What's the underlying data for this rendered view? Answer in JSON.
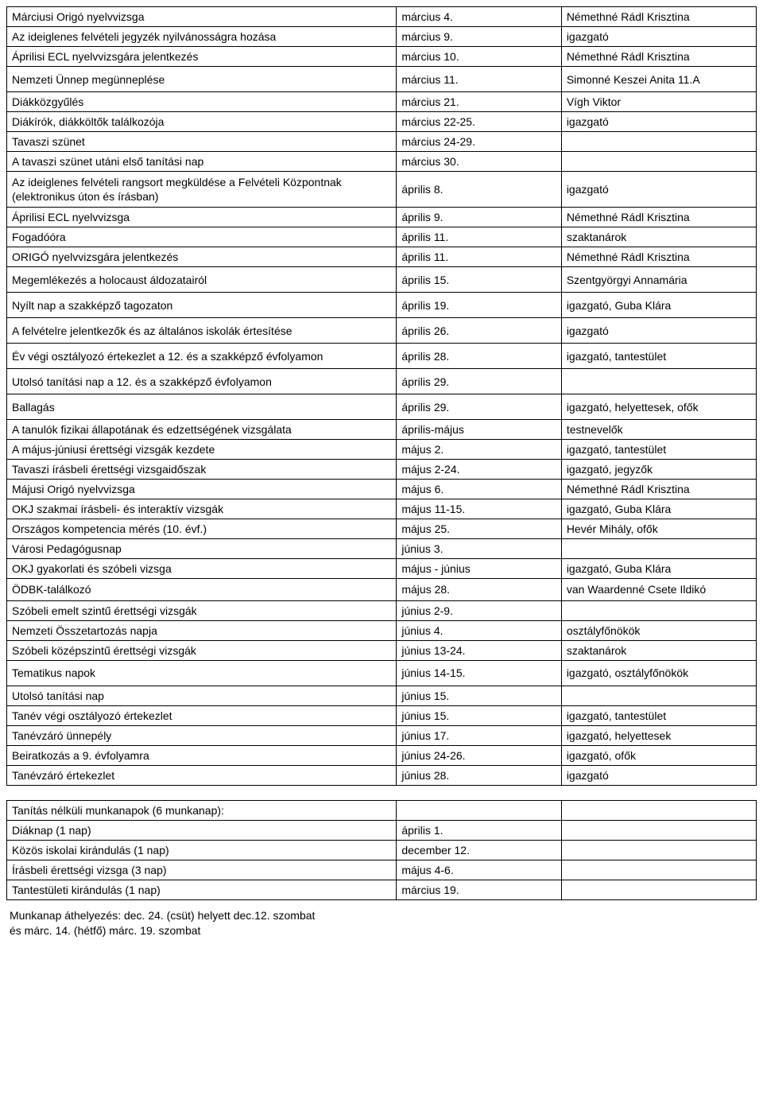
{
  "table1": {
    "rows": [
      {
        "c1": "Márciusi Origó nyelvvizsga",
        "c2": "március 4.",
        "c3": "Némethné Rádl Krisztina"
      },
      {
        "c1": "Az ideiglenes felvételi jegyzék nyilvánosságra hozása",
        "c2": "március 9.",
        "c3": "igazgató"
      },
      {
        "c1": "Áprilisi ECL nyelvvizsgára jelentkezés",
        "c2": "március 10.",
        "c3": "Némethné Rádl Krisztina"
      },
      {
        "c1": "Nemzeti Ünnep megünneplése",
        "c2": "március 11.",
        "c3": "Simonné Keszei Anita 11.A",
        "tall": true
      },
      {
        "c1": "Diákközgyűlés",
        "c2": "március 21.",
        "c3": "Vígh Viktor"
      },
      {
        "c1": "Diákírók, diákköltők találkozója",
        "c2": "március 22-25.",
        "c3": "igazgató"
      },
      {
        "c1": "Tavaszi szünet",
        "c2": "március 24-29.",
        "c3": ""
      },
      {
        "c1": "A tavaszi szünet utáni első tanítási nap",
        "c2": "március 30.",
        "c3": ""
      },
      {
        "c1": "Az ideiglenes felvételi rangsort megküldése a Felvételi Központnak (elektronikus úton és írásban)",
        "c2": "április 8.",
        "c3": "igazgató",
        "twoline": true
      },
      {
        "c1": "Áprilisi ECL nyelvvizsga",
        "c2": "április 9.",
        "c3": "Némethné Rádl Krisztina"
      },
      {
        "c1": "Fogadóóra",
        "c2": "április 11.",
        "c3": "szaktanárok"
      },
      {
        "c1": "ORIGÓ nyelvvizsgára jelentkezés",
        "c2": "április 11.",
        "c3": "Némethné Rádl Krisztina"
      },
      {
        "c1": "Megemlékezés a holocaust áldozatairól",
        "c2": "április 15.",
        "c3": "Szentgyörgyi Annamária",
        "tall": true
      },
      {
        "c1": "Nyílt nap a szakképző tagozaton",
        "c2": "április 19.",
        "c3": "igazgató, Guba Klára",
        "tall": true
      },
      {
        "c1": "A felvételre jelentkezők és az általános iskolák értesítése",
        "c2": "április 26.",
        "c3": "igazgató",
        "tall": true
      },
      {
        "c1": "Év végi osztályozó értekezlet a 12. és a szakképző évfolyamon",
        "c2": "április 28.",
        "c3": "igazgató, tantestület",
        "tall": true
      },
      {
        "c1": "Utolsó tanítási nap a 12. és a szakképző évfolyamon",
        "c2": "április 29.",
        "c3": "",
        "tall": true
      },
      {
        "c1": "Ballagás",
        "c2": "április 29.",
        "c3": "igazgató, helyettesek, ofők",
        "tall": true
      },
      {
        "c1": "A  tanulók fizikai állapotának és edzettségének vizsgálata",
        "c2": "április-május",
        "c3": "testnevelők"
      },
      {
        "c1": "A május-júniusi érettségi vizsgák kezdete",
        "c2": "május 2.",
        "c3": "igazgató, tantestület"
      },
      {
        "c1": "Tavaszi írásbeli érettségi vizsgaidőszak",
        "c2": "május 2-24.",
        "c3": "igazgató, jegyzők"
      },
      {
        "c1": "Májusi Origó nyelvvizsga",
        "c2": "május 6.",
        "c3": "Némethné Rádl Krisztina"
      },
      {
        "c1": "OKJ szakmai írásbeli- és interaktív vizsgák",
        "c2": "május 11-15.",
        "c3": "igazgató, Guba Klára"
      },
      {
        "c1": "Országos kompetencia mérés (10. évf.)",
        "c2": "május 25.",
        "c3": "Hevér Mihály, ofők"
      },
      {
        "c1": "Városi Pedagógusnap",
        "c2": "június 3.",
        "c3": ""
      },
      {
        "c1": "OKJ gyakorlati és szóbeli vizsga",
        "c2": "május - június",
        "c3": "igazgató, Guba Klára"
      },
      {
        "c1": "ÖDBK-találkozó",
        "c2": "május 28.",
        "c3": "van Waardenné Csete Ildikó",
        "twoline": true
      },
      {
        "c1": "Szóbeli emelt szintű érettségi vizsgák",
        "c2": "június 2-9.",
        "c3": ""
      },
      {
        "c1": "Nemzeti Összetartozás napja",
        "c2": "június 4.",
        "c3": "osztályfőnökök"
      },
      {
        "c1": "Szóbeli középszintű érettségi vizsgák",
        "c2": "június 13-24.",
        "c3": "szaktanárok"
      },
      {
        "c1": "Tematikus napok",
        "c2": "június 14-15.",
        "c3": "igazgató, osztályfőnökök",
        "tall": true
      },
      {
        "c1": "Utolsó tanítási nap",
        "c2": "június 15.",
        "c3": ""
      },
      {
        "c1": "Tanév végi osztályozó értekezlet",
        "c2": "június 15.",
        "c3": "igazgató, tantestület"
      },
      {
        "c1": "Tanévzáró ünnepély",
        "c2": "június 17.",
        "c3": "igazgató, helyettesek"
      },
      {
        "c1": "Beiratkozás a 9. évfolyamra",
        "c2": "június 24-26.",
        "c3": "igazgató, ofők"
      },
      {
        "c1": "Tanévzáró értekezlet",
        "c2": "június 28.",
        "c3": "igazgató"
      }
    ]
  },
  "table2": {
    "rows": [
      {
        "c1": "Tanítás nélküli munkanapok (6 munkanap):",
        "c2": "",
        "c3": ""
      },
      {
        "c1": "Diáknap (1 nap)",
        "c2": "április 1.",
        "c3": ""
      },
      {
        "c1": "Közös iskolai kirándulás (1 nap)",
        "c2": "december 12.",
        "c3": ""
      },
      {
        "c1": "Írásbeli érettségi vizsga (3 nap)",
        "c2": "május 4-6.",
        "c3": ""
      },
      {
        "c1": "Tantestületi kirándulás (1 nap)",
        "c2": "március 19.",
        "c3": ""
      }
    ]
  },
  "footer": {
    "line1": "Munkanap áthelyezés: dec. 24. (csüt) helyett dec.12. szombat",
    "line2": "és márc. 14. (hétfő) márc. 19. szombat"
  }
}
